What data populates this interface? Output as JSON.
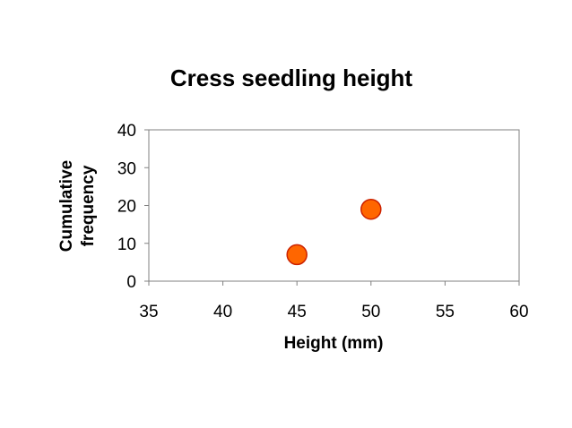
{
  "chart_data": {
    "type": "scatter",
    "title": "Cress seedling height",
    "xlabel": "Height (mm)",
    "ylabel_lines": [
      "Cumulative",
      "frequency"
    ],
    "xlim": [
      35,
      60
    ],
    "ylim": [
      0,
      40
    ],
    "xticks": [
      "35",
      "40",
      "45",
      "50",
      "55",
      "60"
    ],
    "yticks": [
      "0",
      "10",
      "20",
      "30",
      "40"
    ],
    "grid": false,
    "legend": "none",
    "series": [
      {
        "points": [
          {
            "x": 45,
            "y": 7
          },
          {
            "x": 50,
            "y": 19
          }
        ],
        "color": "#FF6600",
        "edge_color": "#CC2200"
      }
    ]
  }
}
